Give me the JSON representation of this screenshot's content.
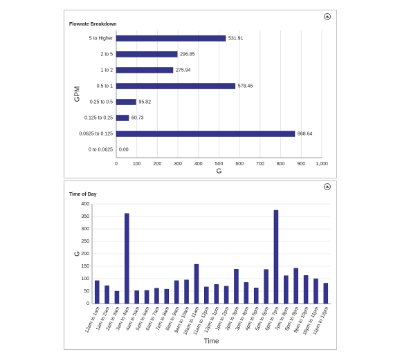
{
  "chart_data": [
    {
      "type": "hbar",
      "title": "Flowrate Breakdown",
      "x_label": "G",
      "y_label": "GPM",
      "categories": [
        "5 to Higher",
        "2 to 5",
        "1 to 2",
        "0.5 to 1",
        "0.25 to 0.5",
        "0.125 to 0.25",
        "0.0625 to 0.125",
        "0 to 0.0625"
      ],
      "values": [
        531.91,
        296.85,
        275.94,
        578.46,
        95.82,
        60.73,
        868.64,
        0
      ],
      "value_labels": [
        "531.91",
        "296.85",
        "275.94",
        "578.46",
        "95.82",
        "60.73",
        "868.64",
        "0.00"
      ],
      "color": "#34348f",
      "xlim": [
        0,
        1000
      ],
      "xticks": [
        0,
        100,
        200,
        300,
        400,
        500,
        600,
        700,
        800,
        900,
        {
          "value": 1000,
          "label": "1,000"
        }
      ],
      "grid": true
    },
    {
      "type": "bar",
      "title": "Time of Day",
      "x_label": "Time",
      "y_label": "G",
      "categories": [
        "12am to 1am",
        "1am to 2am",
        "2am to 3am",
        "3am to 4am",
        "4am to 5am",
        "5am to 6am",
        "6am to 7am",
        "7am to 8am",
        "8am to 9am",
        "9am to 10am",
        "10am to 11am",
        "11am to 12pm",
        "12pm to 1pm",
        "1pm to 2pm",
        "2pm to 3pm",
        "3pm to 4pm",
        "4pm to 5pm",
        "5pm to 6pm",
        "6pm to 7pm",
        "7pm to 8pm",
        "8pm to 9pm",
        "9pm to 10pm",
        "10pm to 11pm",
        "11pm to 12pm"
      ],
      "values": [
        92,
        72,
        50,
        362,
        52,
        53,
        62,
        58,
        92,
        95,
        158,
        67,
        77,
        70,
        138,
        85,
        63,
        137,
        375,
        112,
        142,
        113,
        100,
        82
      ],
      "color": "#34348f",
      "ylim": [
        0,
        400
      ],
      "yticks": [
        0,
        50,
        100,
        150,
        200,
        250,
        300,
        350,
        400
      ],
      "grid": true
    }
  ]
}
